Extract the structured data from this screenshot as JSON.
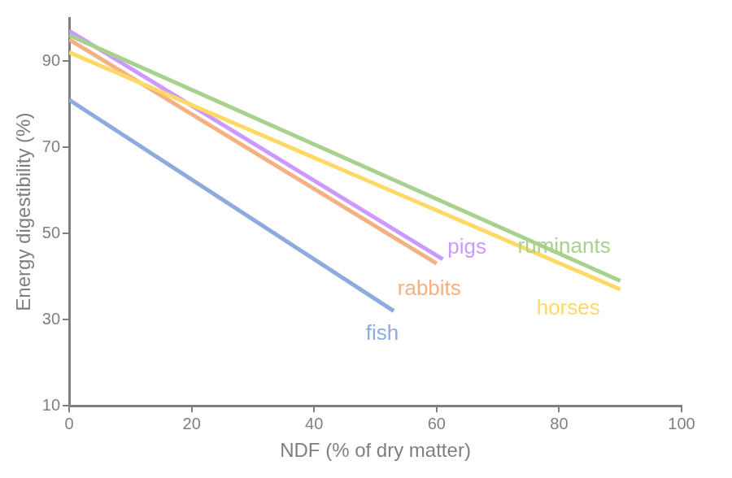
{
  "chart_data": {
    "type": "line",
    "x_label": "NDF (% of dry matter)",
    "y_label": "Energy digestibility (%)",
    "xlim": [
      0,
      100
    ],
    "xticks": [
      0,
      20,
      40,
      60,
      80,
      100
    ],
    "ylim": [
      10,
      100
    ],
    "yticks": [
      10,
      30,
      50,
      70,
      90
    ],
    "grid": false,
    "series": [
      {
        "name": "ruminants",
        "color": "#a9d18e",
        "marker": "none",
        "line_style": "solid",
        "x": [
          0,
          90
        ],
        "values": [
          96,
          39
        ]
      },
      {
        "name": "horses",
        "color": "#ffd966",
        "marker": "none",
        "line_style": "solid",
        "x": [
          0,
          90
        ],
        "values": [
          92,
          37
        ]
      },
      {
        "name": "pigs",
        "color": "#cc99ff",
        "marker": "none",
        "line_style": "solid",
        "x": [
          0,
          61
        ],
        "values": [
          97,
          44
        ]
      },
      {
        "name": "rabbits",
        "color": "#f4b183",
        "marker": "none",
        "line_style": "solid",
        "x": [
          0,
          60
        ],
        "values": [
          95,
          43
        ]
      },
      {
        "name": "fish",
        "color": "#8faadc",
        "marker": "none",
        "line_style": "solid",
        "x": [
          0,
          53
        ],
        "values": [
          81,
          32
        ]
      }
    ]
  }
}
